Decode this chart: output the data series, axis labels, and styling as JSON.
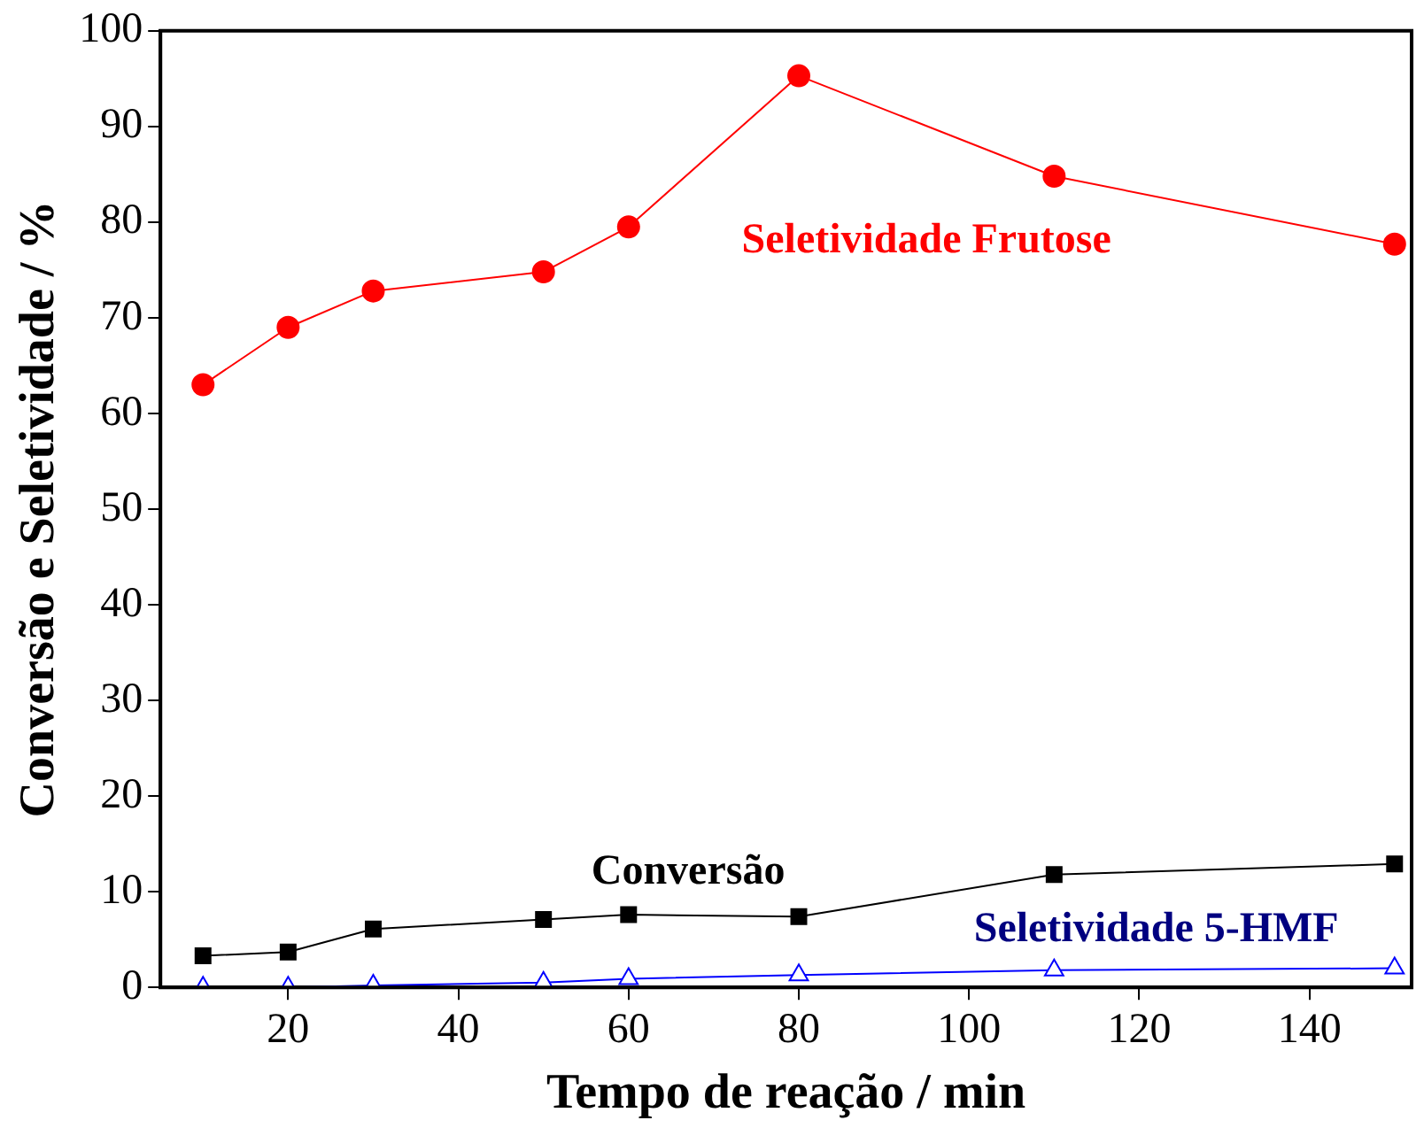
{
  "chart_data": {
    "type": "line",
    "xlabel": "Tempo de reação / min",
    "ylabel": "Conversão e Seletividade / %",
    "x": [
      10,
      20,
      30,
      50,
      60,
      80,
      110,
      150
    ],
    "series": [
      {
        "name": "Seletividade Frutose",
        "color": "#ff0000",
        "marker": "circle",
        "values": [
          63,
          69,
          72.8,
          74.8,
          79.5,
          95.3,
          84.8,
          77.7
        ]
      },
      {
        "name": "Conversão",
        "color": "#000000",
        "marker": "square",
        "values": [
          3.3,
          3.7,
          6.1,
          7.1,
          7.6,
          7.4,
          11.8,
          12.9
        ]
      },
      {
        "name": "Seletividade 5-HMF",
        "color": "#0000ff",
        "marker": "triangle",
        "values": [
          0,
          0,
          0.2,
          0.5,
          0.9,
          1.3,
          1.8,
          2
        ]
      }
    ],
    "xlim": [
      5,
      152
    ],
    "xticks": [
      20,
      40,
      60,
      80,
      100,
      120,
      140
    ],
    "ylim": [
      0,
      100
    ],
    "yticks": [
      0,
      10,
      20,
      30,
      40,
      50,
      60,
      70,
      80,
      90,
      100
    ],
    "grid": false,
    "legend": false,
    "line_style": "solid"
  }
}
